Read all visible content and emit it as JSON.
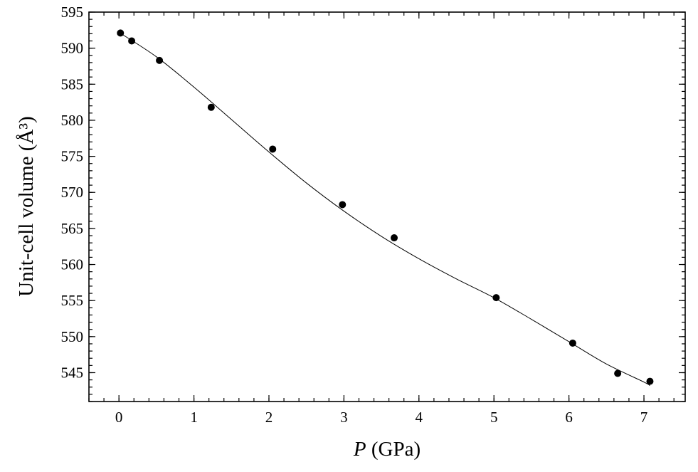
{
  "chart_data": {
    "type": "scatter",
    "title": "",
    "xlabel_var": "P",
    "xlabel_unit": " (GPa)",
    "ylabel": "Unit-cell volume (Å³)",
    "xlim": [
      -0.4,
      7.55
    ],
    "ylim": [
      541,
      595
    ],
    "xticks": [
      0,
      1,
      2,
      3,
      4,
      5,
      6,
      7
    ],
    "xtick_labels": [
      "0",
      "1",
      "2",
      "3",
      "4",
      "5",
      "6",
      "7"
    ],
    "yticks": [
      545,
      550,
      555,
      560,
      565,
      570,
      575,
      580,
      585,
      590,
      595
    ],
    "ytick_labels": [
      "545",
      "550",
      "555",
      "560",
      "565",
      "570",
      "575",
      "580",
      "585",
      "590",
      "595"
    ],
    "x_minor_step": 0.2,
    "y_minor_step": 1,
    "grid": false,
    "series": [
      {
        "kind": "points",
        "x": [
          0.02,
          0.17,
          0.54,
          1.23,
          2.05,
          2.98,
          3.67,
          5.03,
          6.05,
          6.65,
          7.08
        ],
        "y": [
          592.1,
          591.0,
          588.3,
          581.8,
          576.0,
          568.3,
          563.7,
          555.4,
          549.1,
          544.9,
          543.8
        ]
      },
      {
        "kind": "fit",
        "x": [
          0.0,
          0.5,
          1.0,
          1.5,
          2.0,
          2.5,
          3.0,
          3.5,
          4.0,
          4.5,
          5.0,
          5.5,
          6.0,
          6.5,
          7.0,
          7.08
        ],
        "y": [
          592.2,
          588.8,
          584.6,
          580.1,
          575.6,
          571.3,
          567.4,
          563.9,
          560.8,
          558.0,
          555.4,
          552.4,
          549.3,
          546.2,
          543.7,
          543.2
        ]
      }
    ]
  }
}
